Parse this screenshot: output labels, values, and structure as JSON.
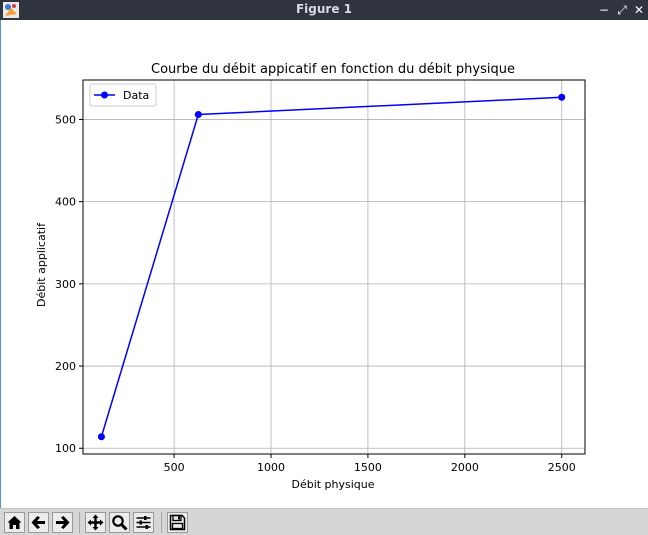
{
  "window": {
    "title": "Figure 1",
    "minimize_glyph": "−",
    "restore_glyph": "⤢",
    "close_glyph": "✕"
  },
  "toolbar": {
    "icons": [
      "home-icon",
      "back-arrow-icon",
      "forward-arrow-icon",
      "pan-icon",
      "zoom-icon",
      "configure-subplots-icon",
      "save-icon"
    ]
  },
  "colors": {
    "series": "#0000ff",
    "grid": "#b0b0b0",
    "titlebar": "#2f343f",
    "toolbar": "#d6d6d6"
  },
  "chart_data": {
    "type": "line",
    "title": "Courbe du débit appicatif en fonction du débit physique",
    "xlabel": "Débit physique",
    "ylabel": "Débit applicatif",
    "xlim": [
      30,
      2620
    ],
    "ylim": [
      93,
      548
    ],
    "xticks": [
      500,
      1000,
      1500,
      2000,
      2500
    ],
    "yticks": [
      100,
      200,
      300,
      400,
      500
    ],
    "grid": true,
    "legend": "top-left",
    "series": [
      {
        "name": "Data",
        "marker": "circle",
        "color": "#0000ff",
        "x": [
          125,
          625,
          2500
        ],
        "y": [
          114,
          506,
          527
        ]
      }
    ]
  }
}
